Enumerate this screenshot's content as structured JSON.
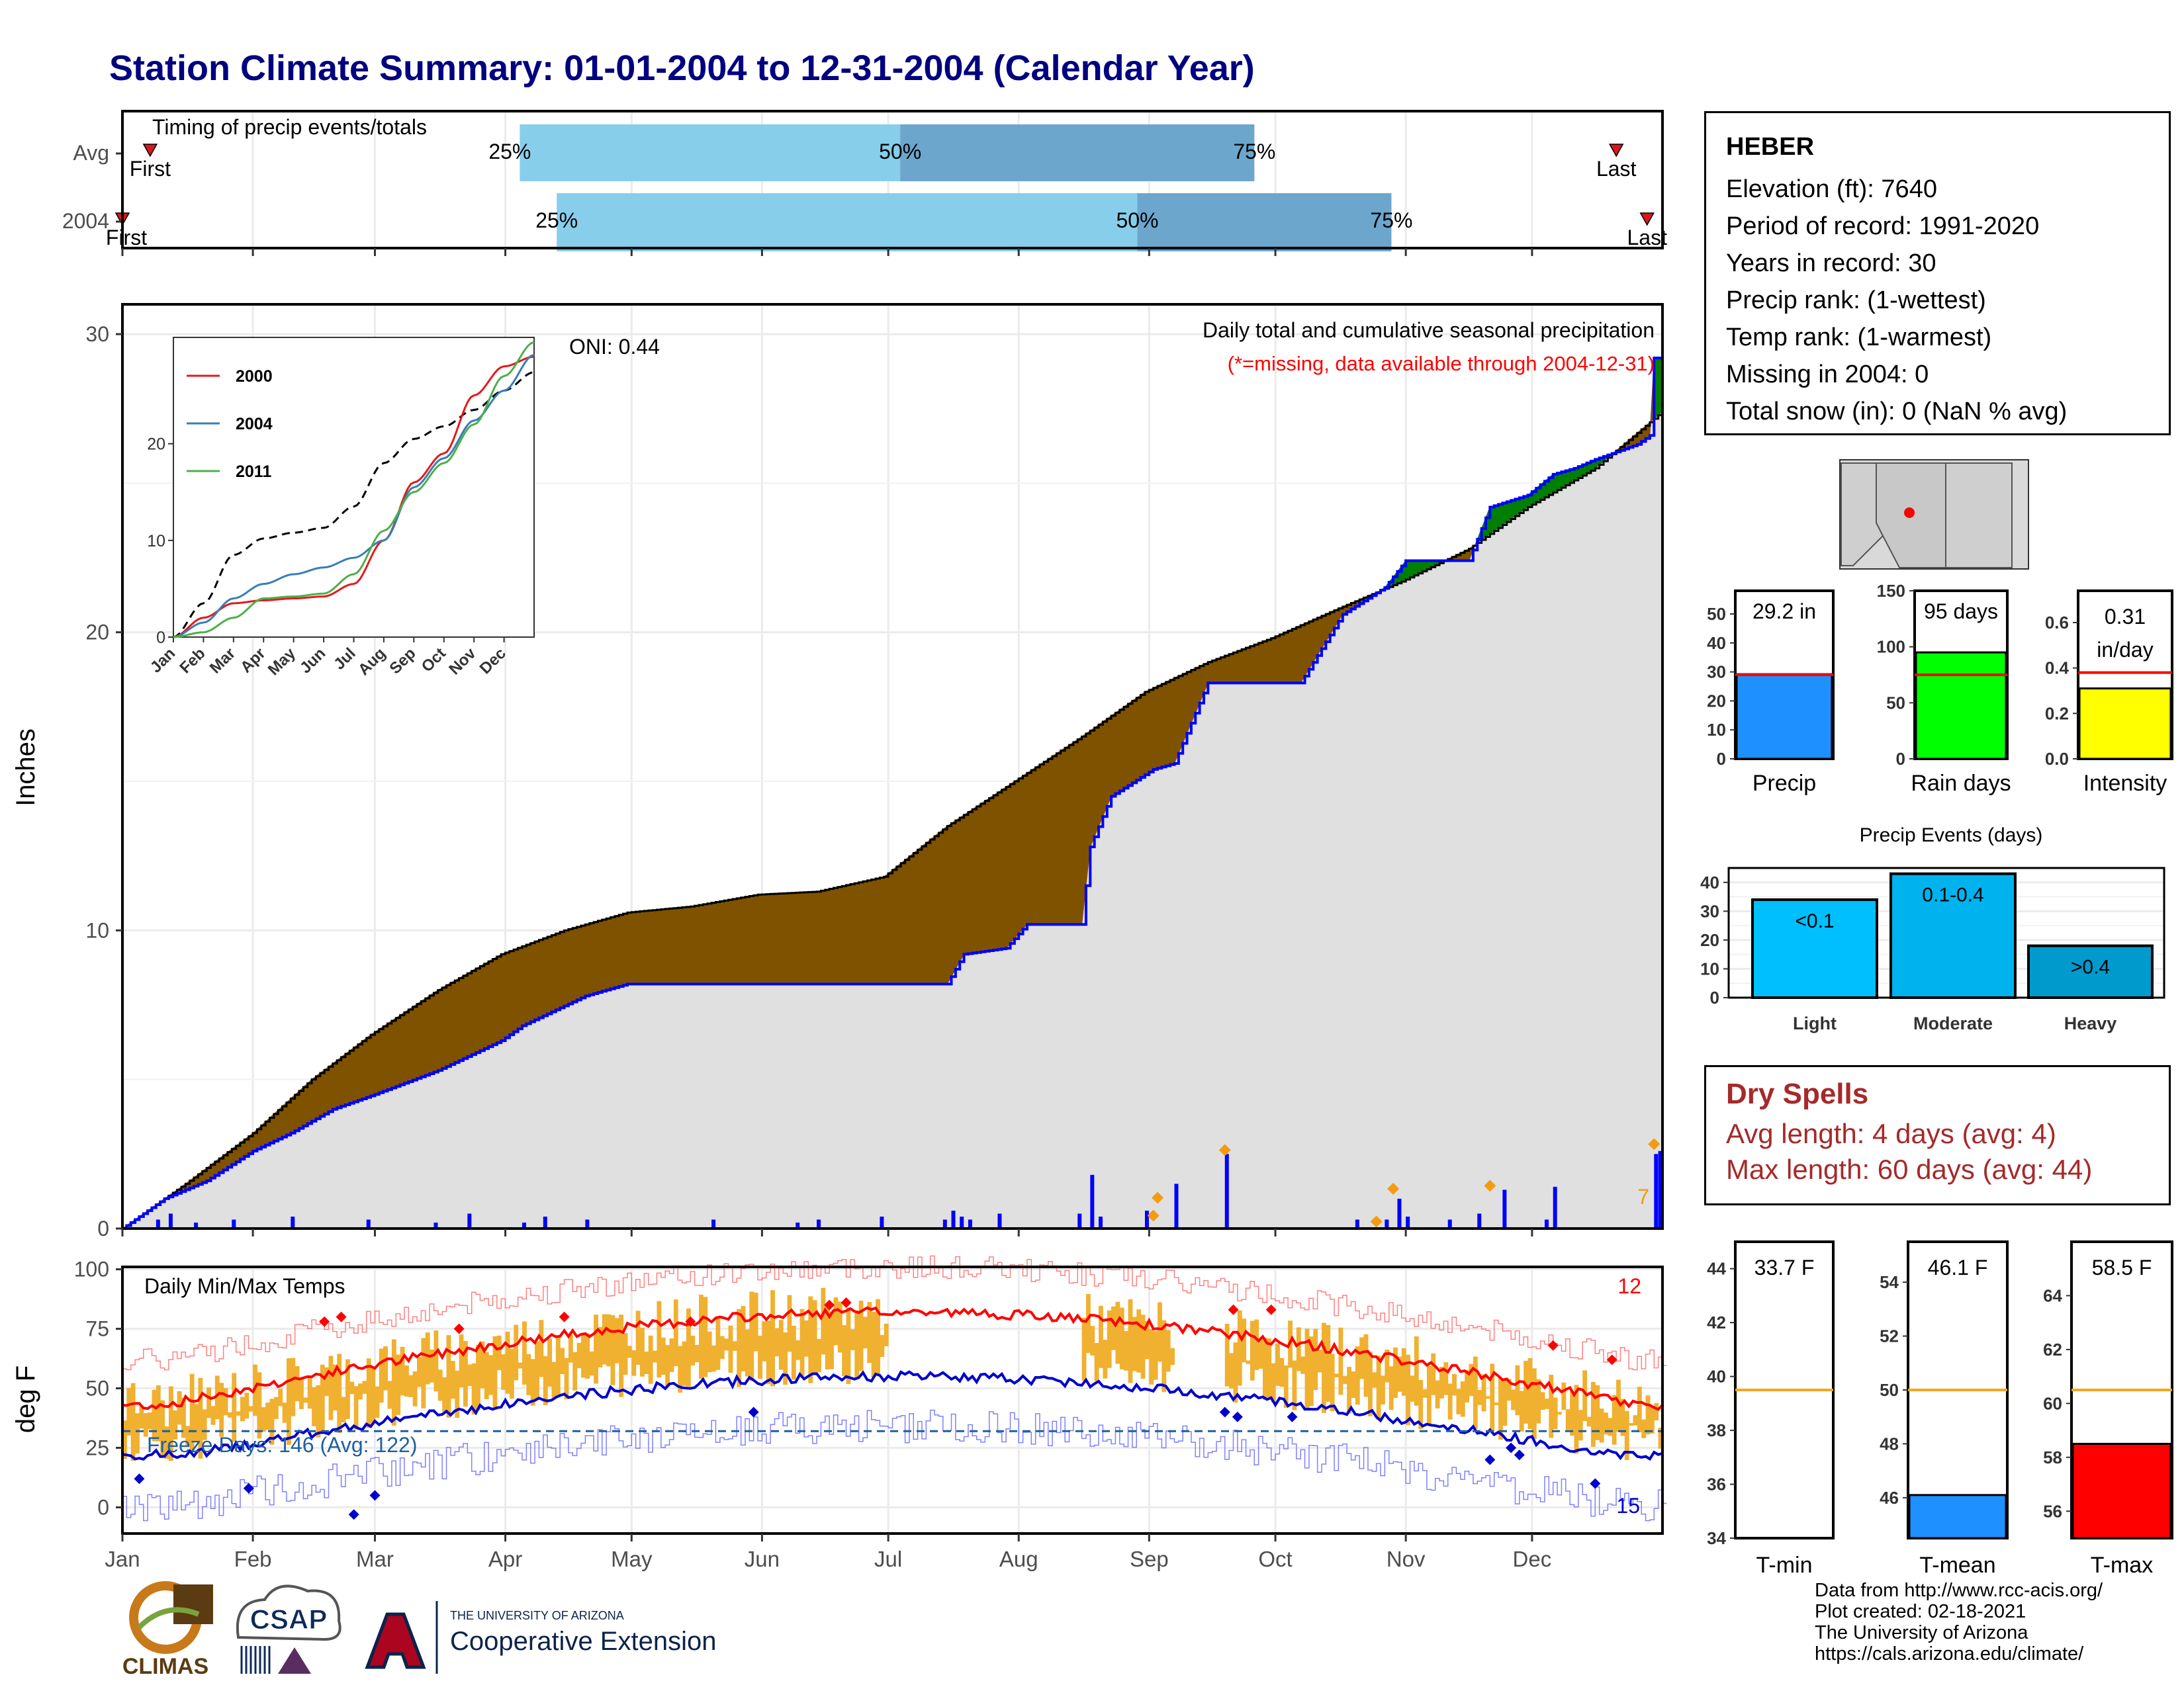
{
  "title": "Station Climate Summary: 01-01-2004 to 12-31-2004 (Calendar Year)",
  "timing": {
    "label": "Timing of precip events/totals",
    "rows": [
      {
        "name": "Avg",
        "first_label": "First",
        "last_label": "Last",
        "p25": 0.25,
        "p50": 0.5,
        "p75": 0.75,
        "first_frac": 0.018,
        "p25_frac": 0.258,
        "p50_frac": 0.505,
        "p75_frac": 0.735,
        "last_frac": 0.97
      },
      {
        "name": "2004",
        "first_label": "First",
        "last_label": "Last",
        "p25": 0.25,
        "p50": 0.5,
        "p75": 0.75,
        "first_frac": 0.0,
        "p25_frac": 0.282,
        "p50_frac": 0.659,
        "p75_frac": 0.824,
        "last_frac": 0.99
      }
    ],
    "pct_labels": [
      "25%",
      "50%",
      "75%"
    ]
  },
  "months": [
    "Jan",
    "Feb",
    "Mar",
    "Apr",
    "May",
    "Jun",
    "Jul",
    "Aug",
    "Sep",
    "Oct",
    "Nov",
    "Dec"
  ],
  "precip_chart": {
    "ylabel": "Inches",
    "title": "Daily total and cumulative seasonal precipitation",
    "subtitle": "(*=missing, data available through 2004-12-31)",
    "oni_label": "ONI: 0.44",
    "yticks": [
      0,
      10,
      20,
      30
    ],
    "ylim": [
      0,
      31
    ],
    "corner_label": "7",
    "avg_cumulative": {
      "day": [
        0,
        15,
        31,
        45,
        59,
        75,
        90,
        105,
        120,
        135,
        151,
        165,
        181,
        196,
        212,
        228,
        243,
        258,
        273,
        289,
        304,
        320,
        334,
        350,
        366
      ],
      "inches": [
        0,
        1.5,
        3.2,
        5,
        6.5,
        8,
        9.2,
        10,
        10.6,
        10.8,
        11.2,
        11.3,
        11.8,
        13.5,
        15,
        16.5,
        18,
        19,
        19.8,
        20.8,
        21.7,
        22.8,
        24.2,
        25.5,
        27.4
      ]
    },
    "obs_cumulative": {
      "day": [
        0,
        5,
        10,
        20,
        31,
        40,
        50,
        60,
        75,
        90,
        95,
        110,
        120,
        135,
        150,
        165,
        180,
        196,
        200,
        210,
        215,
        228,
        230,
        235,
        245,
        250,
        258,
        262,
        270,
        280,
        290,
        300,
        305,
        320,
        325,
        334,
        340,
        345,
        350,
        360,
        363,
        364,
        366
      ],
      "inches": [
        0,
        0.5,
        1.0,
        1.6,
        2.6,
        3.2,
        4.0,
        4.5,
        5.3,
        6.3,
        6.8,
        7.8,
        8.2,
        8.2,
        8.2,
        8.2,
        8.2,
        8.2,
        9.2,
        9.4,
        10.2,
        10.2,
        12.8,
        14.5,
        15.4,
        15.6,
        18.3,
        18.3,
        18.3,
        18.3,
        20.6,
        21.5,
        22.4,
        22.4,
        24.2,
        24.6,
        25.3,
        25.5,
        25.8,
        26.3,
        26.6,
        29.2,
        29.2
      ]
    },
    "daily_bars": {
      "day": [
        8,
        11,
        17,
        26,
        40,
        58,
        74,
        82,
        95,
        100,
        110,
        140,
        160,
        165,
        180,
        195,
        197,
        199,
        201,
        208,
        227,
        230,
        232,
        243,
        250,
        262,
        293,
        300,
        303,
        305,
        315,
        322,
        328,
        338,
        340,
        364,
        365
      ],
      "inches": [
        0.3,
        0.5,
        0.2,
        0.3,
        0.4,
        0.3,
        0.2,
        0.5,
        0.2,
        0.4,
        0.3,
        0.3,
        0.2,
        0.3,
        0.4,
        0.3,
        0.6,
        0.4,
        0.3,
        0.5,
        0.5,
        1.8,
        0.4,
        0.6,
        1.5,
        2.5,
        0.3,
        0.3,
        1.0,
        0.4,
        0.3,
        0.5,
        1.3,
        0.3,
        1.4,
        2.5,
        2.6
      ]
    },
    "markers": {
      "day": [
        245,
        246,
        262,
        298,
        302,
        325,
        364
      ],
      "inches": [
        0.3,
        0.9,
        2.5,
        0.1,
        1.2,
        1.3,
        2.7
      ]
    }
  },
  "inset": {
    "series": [
      {
        "name": "2000",
        "color": "#e31a1c",
        "month": [
          0,
          1,
          2,
          3,
          4,
          5,
          6,
          7,
          8,
          9,
          10,
          11,
          12
        ],
        "inches": [
          0,
          2,
          3.5,
          3.8,
          4.0,
          4.2,
          5.5,
          10,
          16,
          19,
          25,
          28,
          29
        ]
      },
      {
        "name": "2004",
        "color": "#377eb8",
        "month": [
          0,
          1,
          2,
          3,
          4,
          5,
          6,
          7,
          8,
          9,
          10,
          11,
          12
        ],
        "inches": [
          0,
          1.5,
          4,
          5.5,
          6.5,
          7.2,
          8.2,
          10,
          15.5,
          18.5,
          22.4,
          25.5,
          29.2
        ]
      },
      {
        "name": "2011",
        "color": "#4daf4a",
        "month": [
          0,
          1,
          2,
          3,
          4,
          5,
          6,
          7,
          8,
          9,
          10,
          11,
          12
        ],
        "inches": [
          0,
          0.5,
          2.0,
          4.0,
          4.2,
          4.5,
          6.5,
          11,
          15,
          18,
          22,
          27,
          30.5
        ]
      }
    ],
    "avg": {
      "month": [
        0,
        1,
        2,
        3,
        4,
        5,
        6,
        7,
        8,
        9,
        10,
        11,
        12
      ],
      "inches": [
        0,
        3.5,
        8.5,
        10.2,
        10.8,
        11.3,
        13.5,
        18,
        20.5,
        21.8,
        23.5,
        25.5,
        27.4
      ]
    },
    "yticks": [
      0,
      10,
      20
    ],
    "ylim": [
      0,
      31
    ]
  },
  "temp_chart": {
    "ylabel": "deg F",
    "title": "Daily Min/Max Temps",
    "freeze_label": "Freeze Days: 146 (Avg: 122)",
    "hot_count": "12",
    "cold_count": "15",
    "yticks": [
      0,
      25,
      50,
      75,
      100
    ],
    "ylim": [
      -11,
      101
    ],
    "freeze_line": 32
  },
  "station": {
    "name": "HEBER",
    "lines": [
      "Elevation (ft): 7640",
      "Period of record: 1991-2020",
      "Years in record: 30",
      "Precip rank:  (1-wettest)",
      "Temp rank:  (1-warmest)",
      "Missing in 2004: 0",
      "Total snow (in): 0 (NaN % avg)"
    ]
  },
  "summary_bars": [
    {
      "label": "Precip",
      "value_label": "29.2 in",
      "value": 29.2,
      "avg": 29.0,
      "ymax": 58,
      "yticks": [
        0,
        10,
        20,
        30,
        40,
        50
      ],
      "color": "#1e90ff"
    },
    {
      "label": "Rain days",
      "value_label": "95 days",
      "value": 95,
      "avg": 75,
      "ymax": 150,
      "yticks": [
        0,
        50,
        100,
        150
      ],
      "color": "#00ff00"
    },
    {
      "label": "Intensity",
      "value_label": "0.31 in/day",
      "value_top": "0.31",
      "value_bottom": "in/day",
      "value": 0.31,
      "avg": 0.38,
      "ymax": 0.74,
      "yticks": [
        0.0,
        0.2,
        0.4,
        0.6
      ],
      "color": "#ffff00"
    }
  ],
  "events_chart": {
    "title": "Precip Events (days)",
    "yticks": [
      0,
      10,
      20,
      30,
      40
    ],
    "ymax": 45,
    "bars": [
      {
        "category": "Light",
        "label": "<0.1",
        "value": 34,
        "color": "#00bfff"
      },
      {
        "category": "Moderate",
        "label": "0.1-0.4",
        "value": 43,
        "color": "#00b2ee"
      },
      {
        "category": "Heavy",
        "label": ">0.4",
        "value": 18,
        "color": "#009acd"
      }
    ]
  },
  "dry_spells": {
    "title": "Dry Spells",
    "lines": [
      "Avg length: 4 days (avg: 4)",
      "Max length: 60 days (avg: 44)"
    ]
  },
  "temp_bars": [
    {
      "label": "T-min",
      "value_label": "33.7 F",
      "value": 33.7,
      "avg": 39.5,
      "ymin": 34,
      "ymax": 45,
      "yticks": [
        34,
        36,
        38,
        40,
        42,
        44
      ],
      "color": "#ffffff"
    },
    {
      "label": "T-mean",
      "value_label": "46.1 F",
      "value": 46.1,
      "avg": 50.0,
      "ymin": 44.5,
      "ymax": 55.5,
      "yticks": [
        46,
        48,
        50,
        52,
        54
      ],
      "color": "#1e90ff"
    },
    {
      "label": "T-max",
      "value_label": "58.5 F",
      "value": 58.5,
      "avg": 60.5,
      "ymin": 55,
      "ymax": 66,
      "yticks": [
        56,
        58,
        60,
        62,
        64
      ],
      "color": "#ff0000"
    }
  ],
  "logos": {
    "climas": "CLIMAS",
    "csap": "CSAP",
    "ua_top": "THE UNIVERSITY OF ARIZONA",
    "ua_bottom": "Cooperative Extension"
  },
  "credits": [
    "Data from http://www.rcc-acis.org/",
    "Plot created: 02-18-2021",
    "The University of Arizona",
    "https://cals.arizona.edu/climate/"
  ]
}
